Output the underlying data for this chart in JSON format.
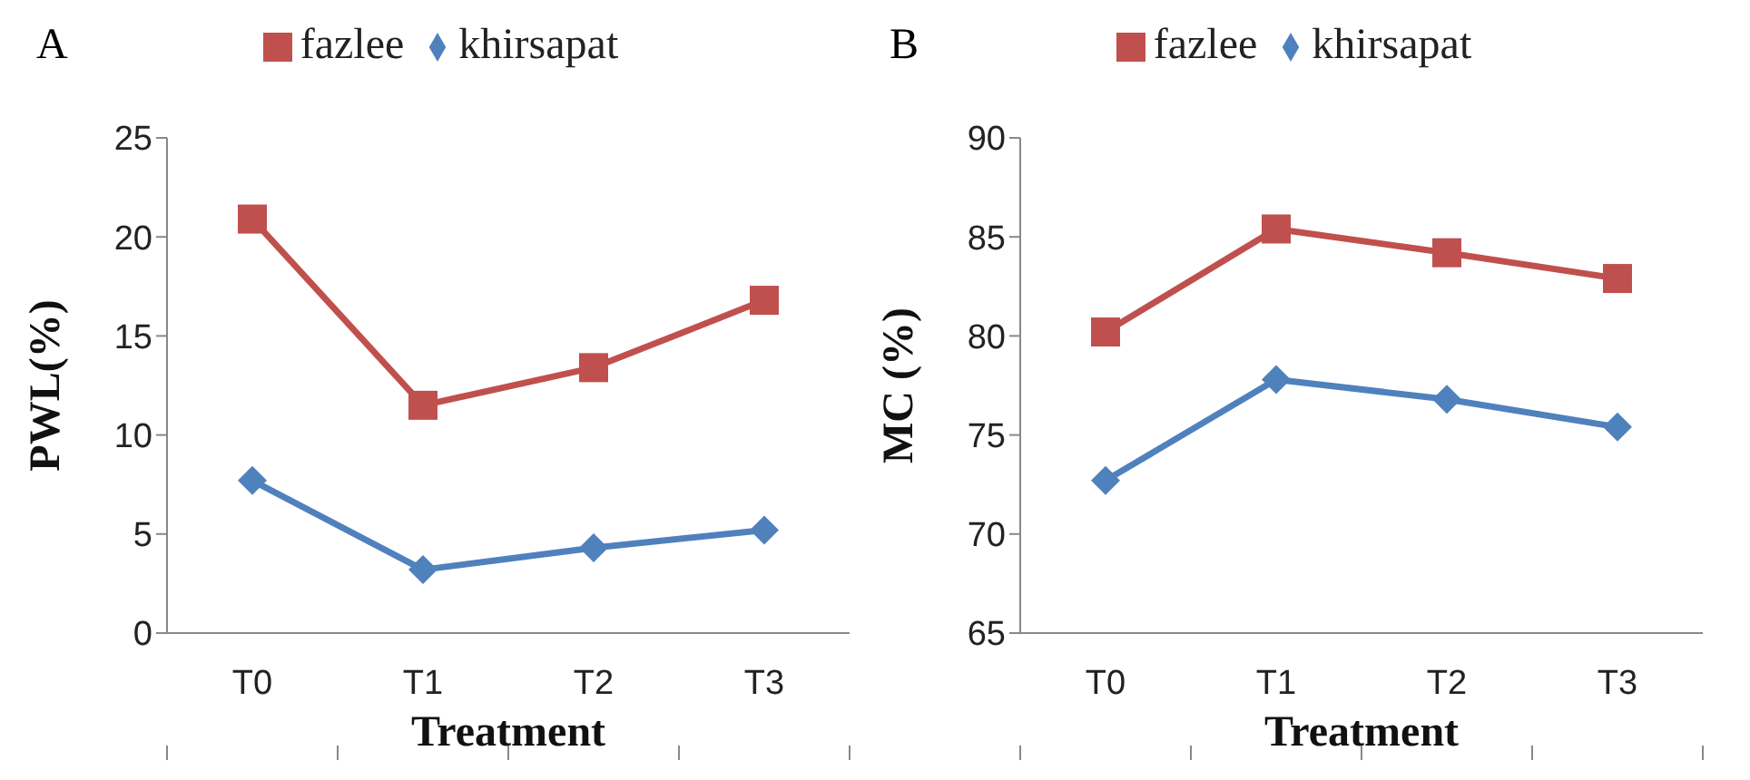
{
  "chart_data": [
    {
      "type": "line",
      "title": "A",
      "xlabel": "Treatment",
      "ylabel": "PWL(%)",
      "categories": [
        "T0",
        "T1",
        "T2",
        "T3"
      ],
      "series": [
        {
          "name": "fazlee",
          "color": "#c0504d",
          "marker": "square",
          "values": [
            20.9,
            11.5,
            13.4,
            16.8
          ]
        },
        {
          "name": "khirsapat",
          "color": "#4f81bd",
          "marker": "diamond",
          "values": [
            7.7,
            3.2,
            4.3,
            5.2
          ]
        }
      ],
      "ylim": [
        0,
        25
      ],
      "yticks": [
        0,
        5,
        10,
        15,
        20,
        25
      ],
      "grid": false,
      "legend": "top"
    },
    {
      "type": "line",
      "title": "B",
      "xlabel": "Treatment",
      "ylabel": "MC (%)",
      "categories": [
        "T0",
        "T1",
        "T2",
        "T3"
      ],
      "series": [
        {
          "name": "khirsapat",
          "color": "#4f81bd",
          "marker": "diamond",
          "values": [
            72.7,
            77.8,
            76.8,
            75.4
          ]
        },
        {
          "name": "fazlee",
          "color": "#c0504d",
          "marker": "square",
          "values": [
            80.2,
            85.4,
            84.2,
            82.9
          ]
        }
      ],
      "ylim": [
        65,
        90
      ],
      "yticks": [
        65,
        70,
        75,
        80,
        85,
        90
      ],
      "grid": false,
      "legend": "top"
    }
  ]
}
